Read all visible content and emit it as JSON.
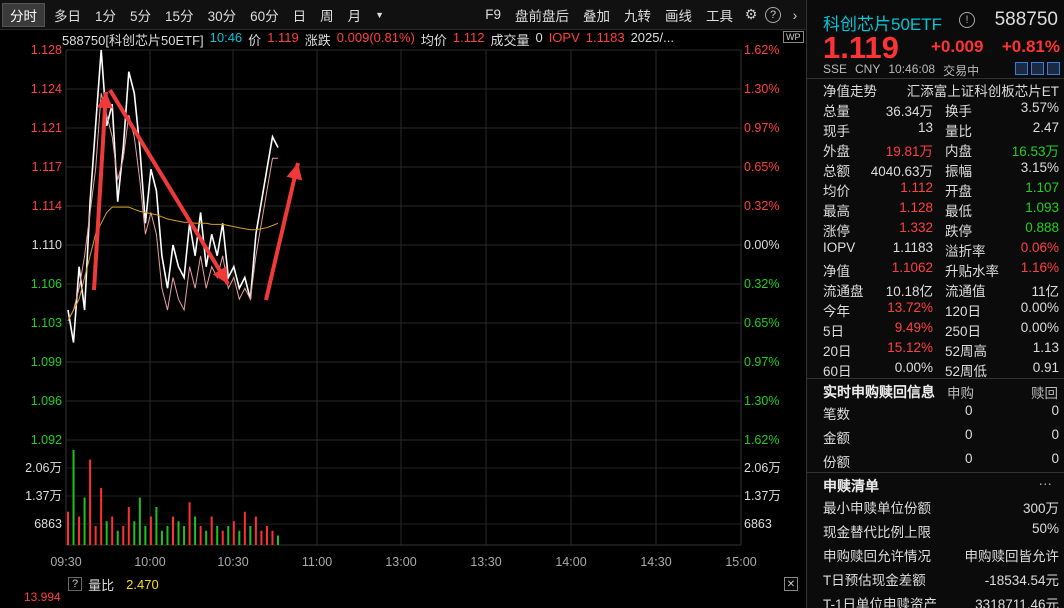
{
  "toolbar": {
    "left_items": [
      "分时",
      "多日",
      "1分",
      "5分",
      "15分",
      "30分",
      "60分",
      "日",
      "周",
      "月"
    ],
    "active": "分时",
    "right_items": [
      "F9",
      "盘前盘后",
      "叠加",
      "九转",
      "画线",
      "工具"
    ]
  },
  "infoline": {
    "symbol": "588750[科创芯片50ETF]",
    "time": "10:46",
    "price_label": "价",
    "price": "1.119",
    "chg_label": "涨跌",
    "chg": "0.009(0.81%)",
    "avg_label": "均价",
    "avg": "1.112",
    "vol_label": "成交量",
    "vol": "0",
    "iopv_label": "IOPV",
    "iopv": "1.1183",
    "date": "2025/..."
  },
  "wp_badge": "WP",
  "chart_data": {
    "type": "line",
    "x_ticks": [
      "09:30",
      "10:00",
      "10:30",
      "11:00",
      "13:00",
      "13:30",
      "14:00",
      "14:30",
      "15:00"
    ],
    "price_ticks": [
      "1.128",
      "1.124",
      "1.121",
      "1.117",
      "1.114",
      "1.110",
      "1.106",
      "1.103",
      "1.099",
      "1.096",
      "1.092"
    ],
    "pct_ticks": [
      "1.62%",
      "1.30%",
      "0.97%",
      "0.65%",
      "0.32%",
      "0.00%",
      "0.32%",
      "0.65%",
      "0.97%",
      "1.30%",
      "1.62%"
    ],
    "volume_ticks": [
      "2.06万",
      "1.37万",
      "6863"
    ],
    "ylim": [
      1.092,
      1.128
    ],
    "base": 1.11,
    "series": [
      {
        "color": "#ffffff",
        "values": [
          1.104,
          1.101,
          1.108,
          1.104,
          1.114,
          1.121,
          1.128,
          1.121,
          1.123,
          1.114,
          1.119,
          1.126,
          1.124,
          1.119,
          1.112,
          1.117,
          1.115,
          1.109,
          1.106,
          1.11,
          1.108,
          1.107,
          1.112,
          1.109,
          1.113,
          1.108,
          1.111,
          1.109,
          1.112,
          1.107,
          1.108,
          1.106,
          1.107,
          1.105,
          1.111,
          1.114,
          1.117,
          1.12,
          1.119
        ]
      },
      {
        "color": "#e8a0a0",
        "values": [
          1.103,
          1.104,
          1.106,
          1.109,
          1.113,
          1.117,
          1.124,
          1.122,
          1.12,
          1.116,
          1.118,
          1.122,
          1.12,
          1.116,
          1.111,
          1.113,
          1.111,
          1.106,
          1.104,
          1.107,
          1.105,
          1.104,
          1.108,
          1.106,
          1.109,
          1.106,
          1.108,
          1.107,
          1.109,
          1.106,
          1.107,
          1.105,
          1.106,
          1.105,
          1.109,
          1.112,
          1.115,
          1.118,
          1.118
        ]
      },
      {
        "color": "#d4a020",
        "values": [
          1.103,
          1.104,
          1.105,
          1.107,
          1.109,
          1.111,
          1.112,
          1.113,
          1.1135,
          1.1135,
          1.1135,
          1.1135,
          1.1133,
          1.1131,
          1.113,
          1.1129,
          1.1128,
          1.1126,
          1.1124,
          1.1123,
          1.1122,
          1.1121,
          1.1121,
          1.112,
          1.112,
          1.112,
          1.1119,
          1.1119,
          1.1119,
          1.1118,
          1.1117,
          1.1116,
          1.1115,
          1.1114,
          1.1114,
          1.1115,
          1.1116,
          1.1118,
          1.112
        ]
      }
    ],
    "volume": [
      0.35,
      1.0,
      0.3,
      0.5,
      0.9,
      0.2,
      0.6,
      0.25,
      0.3,
      0.15,
      0.2,
      0.4,
      0.25,
      0.5,
      0.2,
      0.3,
      0.4,
      0.15,
      0.2,
      0.3,
      0.25,
      0.2,
      0.45,
      0.3,
      0.2,
      0.15,
      0.3,
      0.2,
      0.15,
      0.2,
      0.25,
      0.15,
      0.35,
      0.2,
      0.3,
      0.15,
      0.2,
      0.15,
      0.1
    ]
  },
  "subbar": {
    "help": "?",
    "label": "量比",
    "value": "2.470",
    "bottom_value": "13.994"
  },
  "panel": {
    "name": "科创芯片50ETF",
    "code": "588750",
    "price": "1.119",
    "chg": "+0.009",
    "pct": "+0.81%",
    "market": "SSE",
    "currency": "CNY",
    "time": "10:46:08",
    "status": "交易中",
    "nav_label": "净值走势",
    "nav_name": "汇添富上证科创板芯片ET",
    "rows": [
      {
        "l1": "总量",
        "v1": "36.34万",
        "c1": "white",
        "l2": "换手",
        "v2": "3.57%",
        "c2": "white"
      },
      {
        "l1": "现手",
        "v1": "13",
        "c1": "white",
        "l2": "量比",
        "v2": "2.47",
        "c2": "white"
      },
      {
        "l1": "外盘",
        "v1": "19.81万",
        "c1": "red",
        "l2": "内盘",
        "v2": "16.53万",
        "c2": "green"
      },
      {
        "l1": "总额",
        "v1": "4040.63万",
        "c1": "white",
        "l2": "振幅",
        "v2": "3.15%",
        "c2": "white"
      },
      {
        "l1": "均价",
        "v1": "1.112",
        "c1": "red",
        "l2": "开盘",
        "v2": "1.107",
        "c2": "green"
      },
      {
        "l1": "最高",
        "v1": "1.128",
        "c1": "red",
        "l2": "最低",
        "v2": "1.093",
        "c2": "green"
      },
      {
        "l1": "涨停",
        "v1": "1.332",
        "c1": "red",
        "l2": "跌停",
        "v2": "0.888",
        "c2": "green"
      },
      {
        "l1": "IOPV",
        "v1": "1.1183",
        "c1": "white",
        "l2": "溢折率",
        "v2": "0.06%",
        "c2": "red"
      },
      {
        "l1": "净值",
        "v1": "1.1062",
        "c1": "red",
        "l2": "升贴水率",
        "v2": "1.16%",
        "c2": "red"
      },
      {
        "l1": "流通盘",
        "v1": "10.18亿",
        "c1": "white",
        "l2": "流通值",
        "v2": "11亿",
        "c2": "white"
      },
      {
        "l1": "今年",
        "v1": "13.72%",
        "c1": "red",
        "l2": "120日",
        "v2": "0.00%",
        "c2": "white"
      },
      {
        "l1": "5日",
        "v1": "9.49%",
        "c1": "red",
        "l2": "250日",
        "v2": "0.00%",
        "c2": "white"
      },
      {
        "l1": "20日",
        "v1": "15.12%",
        "c1": "red",
        "l2": "52周高",
        "v2": "1.13",
        "c2": "white"
      },
      {
        "l1": "60日",
        "v1": "0.00%",
        "c1": "white",
        "l2": "52周低",
        "v2": "0.91",
        "c2": "white"
      }
    ],
    "sub_title": "实时申购赎回信息",
    "sub_col1": "申购",
    "sub_col2": "赎回",
    "sub_rows": [
      {
        "label": "笔数",
        "a": "0",
        "b": "0"
      },
      {
        "label": "金额",
        "a": "0",
        "b": "0"
      },
      {
        "label": "份额",
        "a": "0",
        "b": "0"
      }
    ],
    "list_title": "申赎清单",
    "list_more": "···",
    "list_rows": [
      {
        "label": "最小申赎单位份额",
        "value": "300万"
      },
      {
        "label": "现金替代比例上限",
        "value": "50%"
      },
      {
        "label": "申购赎回允许情况",
        "value": "申购赎回皆允许"
      },
      {
        "label": "T日预估现金差额",
        "value": "-18534.54元"
      },
      {
        "label": "T-1日单位申赎资产",
        "value": "3318711.46元"
      }
    ]
  }
}
